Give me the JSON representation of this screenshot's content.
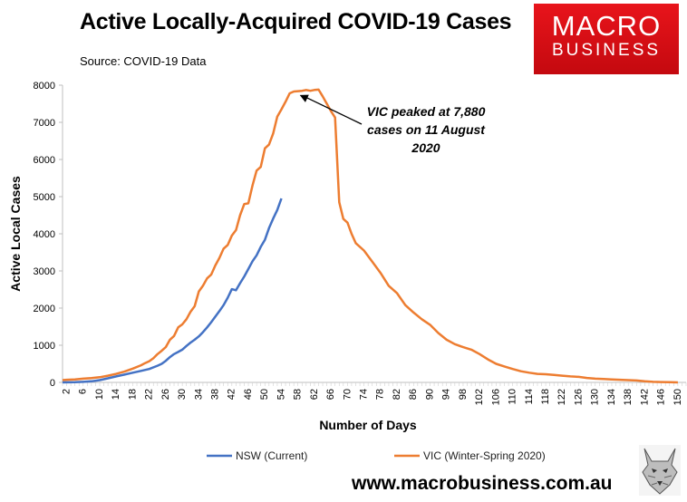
{
  "header": {
    "title": "Active Locally-Acquired COVID-19 Cases",
    "subtitle": "Source: COVID-19 Data"
  },
  "logo": {
    "line1": "MACRO",
    "line2": "BUSINESS",
    "color": "#d80f15"
  },
  "footer": {
    "url": "www.macrobusiness.com.au"
  },
  "chart_data": {
    "type": "line",
    "xlabel": "Number of Days",
    "ylabel": "Active Local Cases",
    "ylim": [
      0,
      8000
    ],
    "xlim": [
      1,
      152
    ],
    "yticks": [
      0,
      1000,
      2000,
      3000,
      4000,
      5000,
      6000,
      7000,
      8000
    ],
    "xtick_start": 2,
    "xtick_end": 150,
    "xtick_step": 4,
    "grid": false,
    "legend_position": "bottom",
    "annotation": {
      "lines": [
        "VIC peaked at 7,880",
        "cases on 11 August",
        "2020"
      ],
      "point": [
        58,
        7880
      ]
    },
    "series": [
      {
        "name": "NSW (Current)",
        "color": "#4472c4",
        "points": [
          [
            1,
            0
          ],
          [
            4,
            5
          ],
          [
            6,
            15
          ],
          [
            8,
            30
          ],
          [
            10,
            60
          ],
          [
            12,
            110
          ],
          [
            14,
            160
          ],
          [
            16,
            210
          ],
          [
            18,
            260
          ],
          [
            20,
            310
          ],
          [
            22,
            360
          ],
          [
            24,
            450
          ],
          [
            25,
            500
          ],
          [
            26,
            580
          ],
          [
            27,
            680
          ],
          [
            28,
            760
          ],
          [
            29,
            820
          ],
          [
            30,
            880
          ],
          [
            31,
            980
          ],
          [
            32,
            1070
          ],
          [
            33,
            1150
          ],
          [
            34,
            1240
          ],
          [
            35,
            1350
          ],
          [
            36,
            1480
          ],
          [
            37,
            1620
          ],
          [
            38,
            1770
          ],
          [
            39,
            1920
          ],
          [
            40,
            2080
          ],
          [
            41,
            2280
          ],
          [
            42,
            2510
          ],
          [
            43,
            2480
          ],
          [
            44,
            2670
          ],
          [
            45,
            2850
          ],
          [
            46,
            3050
          ],
          [
            47,
            3260
          ],
          [
            48,
            3420
          ],
          [
            49,
            3650
          ],
          [
            50,
            3840
          ],
          [
            51,
            4150
          ],
          [
            52,
            4410
          ],
          [
            53,
            4640
          ],
          [
            54,
            4950
          ]
        ]
      },
      {
        "name": "VIC (Winter-Spring 2020)",
        "color": "#ed7d31",
        "points": [
          [
            1,
            60
          ],
          [
            2,
            70
          ],
          [
            4,
            80
          ],
          [
            6,
            100
          ],
          [
            8,
            115
          ],
          [
            10,
            140
          ],
          [
            12,
            180
          ],
          [
            14,
            230
          ],
          [
            16,
            290
          ],
          [
            18,
            370
          ],
          [
            20,
            460
          ],
          [
            21,
            520
          ],
          [
            22,
            570
          ],
          [
            23,
            650
          ],
          [
            24,
            760
          ],
          [
            25,
            850
          ],
          [
            26,
            950
          ],
          [
            27,
            1150
          ],
          [
            28,
            1250
          ],
          [
            29,
            1480
          ],
          [
            30,
            1560
          ],
          [
            31,
            1700
          ],
          [
            32,
            1900
          ],
          [
            33,
            2050
          ],
          [
            34,
            2450
          ],
          [
            35,
            2600
          ],
          [
            36,
            2800
          ],
          [
            37,
            2900
          ],
          [
            38,
            3150
          ],
          [
            39,
            3350
          ],
          [
            40,
            3600
          ],
          [
            41,
            3700
          ],
          [
            42,
            3950
          ],
          [
            43,
            4100
          ],
          [
            44,
            4500
          ],
          [
            45,
            4800
          ],
          [
            46,
            4820
          ],
          [
            47,
            5300
          ],
          [
            48,
            5700
          ],
          [
            49,
            5800
          ],
          [
            50,
            6300
          ],
          [
            51,
            6400
          ],
          [
            52,
            6700
          ],
          [
            53,
            7150
          ],
          [
            54,
            7350
          ],
          [
            55,
            7550
          ],
          [
            56,
            7780
          ],
          [
            57,
            7830
          ],
          [
            58,
            7840
          ],
          [
            59,
            7850
          ],
          [
            60,
            7870
          ],
          [
            61,
            7850
          ],
          [
            62,
            7870
          ],
          [
            63,
            7880
          ],
          [
            64,
            7700
          ],
          [
            65,
            7500
          ],
          [
            66,
            7300
          ],
          [
            67,
            7130
          ],
          [
            68,
            4850
          ],
          [
            69,
            4400
          ],
          [
            70,
            4300
          ],
          [
            71,
            4000
          ],
          [
            72,
            3750
          ],
          [
            74,
            3550
          ],
          [
            76,
            3250
          ],
          [
            78,
            2950
          ],
          [
            80,
            2600
          ],
          [
            82,
            2400
          ],
          [
            84,
            2080
          ],
          [
            86,
            1880
          ],
          [
            88,
            1700
          ],
          [
            90,
            1550
          ],
          [
            92,
            1330
          ],
          [
            94,
            1150
          ],
          [
            96,
            1030
          ],
          [
            98,
            950
          ],
          [
            100,
            880
          ],
          [
            102,
            760
          ],
          [
            104,
            620
          ],
          [
            106,
            500
          ],
          [
            108,
            430
          ],
          [
            110,
            360
          ],
          [
            112,
            300
          ],
          [
            114,
            260
          ],
          [
            116,
            230
          ],
          [
            118,
            220
          ],
          [
            120,
            200
          ],
          [
            122,
            180
          ],
          [
            124,
            160
          ],
          [
            126,
            150
          ],
          [
            128,
            120
          ],
          [
            130,
            100
          ],
          [
            132,
            90
          ],
          [
            134,
            80
          ],
          [
            136,
            70
          ],
          [
            138,
            60
          ],
          [
            140,
            50
          ],
          [
            142,
            30
          ],
          [
            144,
            15
          ],
          [
            146,
            10
          ],
          [
            148,
            5
          ],
          [
            150,
            0
          ]
        ]
      }
    ]
  }
}
